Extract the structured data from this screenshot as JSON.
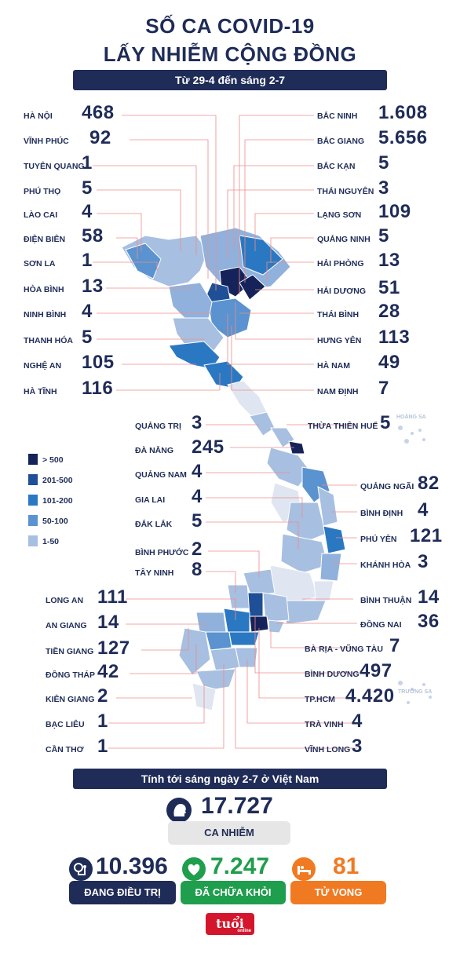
{
  "title_line1": "SỐ CA COVID-19",
  "title_line2": "LẤY NHIỄM CỘNG ĐỒNG",
  "date_range": "Từ 29-4 đến sáng 2-7",
  "left_provinces": [
    {
      "name": "HÀ NỘI",
      "count": "468"
    },
    {
      "name": "VĨNH PHÚC",
      "count": "92"
    },
    {
      "name": "TUYÊN QUANG",
      "count": "1"
    },
    {
      "name": "PHÚ THỌ",
      "count": "5"
    },
    {
      "name": "LÀO CAI",
      "count": "4"
    },
    {
      "name": "ĐIỆN BIÊN",
      "count": "58"
    },
    {
      "name": "SƠN LA",
      "count": "1"
    },
    {
      "name": "HÒA BÌNH",
      "count": "13"
    },
    {
      "name": "NINH BÌNH",
      "count": "4"
    },
    {
      "name": "THANH HÓA",
      "count": "5"
    },
    {
      "name": "NGHỆ AN",
      "count": "105"
    },
    {
      "name": "HÀ TĨNH",
      "count": "116"
    }
  ],
  "right_provinces": [
    {
      "name": "BẮC NINH",
      "count": "1.608"
    },
    {
      "name": "BẮC GIANG",
      "count": "5.656"
    },
    {
      "name": "BẮC KẠN",
      "count": "5"
    },
    {
      "name": "THÁI NGUYÊN",
      "count": "3"
    },
    {
      "name": "LẠNG SƠN",
      "count": "109"
    },
    {
      "name": "QUẢNG NINH",
      "count": "5"
    },
    {
      "name": "HẢI PHÒNG",
      "count": "13"
    },
    {
      "name": "HẢI DƯƠNG",
      "count": "51"
    },
    {
      "name": "THÁI BÌNH",
      "count": "28"
    },
    {
      "name": "HƯNG YÊN",
      "count": "113"
    },
    {
      "name": "HÀ NAM",
      "count": "49"
    },
    {
      "name": "NAM ĐỊNH",
      "count": "7"
    }
  ],
  "central_left": [
    {
      "name": "QUẢNG TRỊ",
      "count": "3"
    },
    {
      "name": "ĐÀ NẴNG",
      "count": "245"
    },
    {
      "name": "QUẢNG NAM",
      "count": "4"
    },
    {
      "name": "GIA LAI",
      "count": "4"
    },
    {
      "name": "ĐẮK LẮK",
      "count": "5"
    },
    {
      "name": "BÌNH PHƯỚC",
      "count": "2"
    },
    {
      "name": "TÂY NINH",
      "count": "8"
    }
  ],
  "central_right": [
    {
      "name": "THỪA THIÊN HUẾ",
      "count": "5"
    },
    {
      "name": "QUẢNG NGÃI",
      "count": "82"
    },
    {
      "name": "BÌNH ĐỊNH",
      "count": "4"
    },
    {
      "name": "PHÚ YÊN",
      "count": "121"
    },
    {
      "name": "KHÁNH HÒA",
      "count": "3"
    }
  ],
  "south_left": [
    {
      "name": "LONG AN",
      "count": "111"
    },
    {
      "name": "AN GIANG",
      "count": "14"
    },
    {
      "name": "TIỀN GIANG",
      "count": "127"
    },
    {
      "name": "ĐỒNG THÁP",
      "count": "42"
    },
    {
      "name": "KIÊN GIANG",
      "count": "2"
    },
    {
      "name": "BẠC LIÊU",
      "count": "1"
    },
    {
      "name": "CẦN THƠ",
      "count": "1"
    }
  ],
  "south_right": [
    {
      "name": "BÌNH THUẬN",
      "count": "14"
    },
    {
      "name": "ĐỒNG NAI",
      "count": "36"
    },
    {
      "name": "BÀ RỊA - VŨNG TÀU",
      "count": "7"
    },
    {
      "name": "BÌNH DƯƠNG",
      "count": "497"
    },
    {
      "name": "TP.HCM",
      "count": "4.420"
    },
    {
      "name": "TRÀ VINH",
      "count": "4"
    },
    {
      "name": "VĨNH LONG",
      "count": "3"
    }
  ],
  "islands": {
    "hoang_sa": "HOÀNG SA",
    "truong_sa": "TRƯỜNG SA"
  },
  "legend": [
    {
      "label": "> 500",
      "color": "#15235a"
    },
    {
      "label": "201-500",
      "color": "#1f4f96"
    },
    {
      "label": "101-200",
      "color": "#2b78c2"
    },
    {
      "label": "50-100",
      "color": "#5a93cf"
    },
    {
      "label": "1-50",
      "color": "#a7bfe0"
    }
  ],
  "summary_banner": "Tính tới sáng ngày 2-7 ở Việt Nam",
  "totals": {
    "cases_value": "17.727",
    "cases_label": "CA NHIỄM",
    "treating_value": "10.396",
    "treating_label": "ĐANG ĐIỀU TRỊ",
    "recovered_value": "7.247",
    "recovered_label": "ĐÃ CHỮA KHỎI",
    "deaths_value": "81",
    "deaths_label": "TỬ VONG"
  },
  "colors": {
    "navy": "#1f2c58",
    "green": "#1f9e4d",
    "orange": "#f07a22",
    "gray": "#e6e6e6"
  },
  "logo_text": "tuổi trẻ",
  "logo_sub": "online"
}
